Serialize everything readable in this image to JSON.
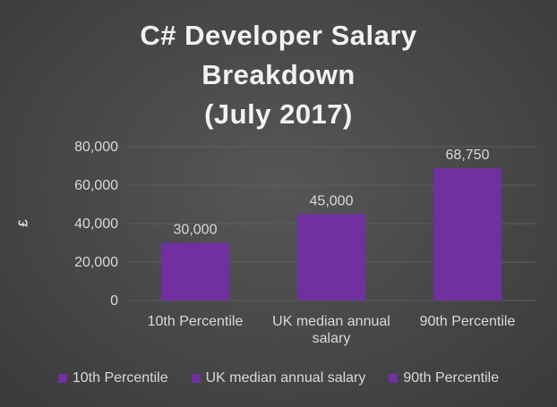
{
  "chart_data": {
    "type": "bar",
    "title": "C# Developer Salary Breakdown (July 2017)",
    "title_lines": [
      "C# Developer Salary",
      "Breakdown",
      "(July 2017)"
    ],
    "ylabel": "£",
    "xlabel": "",
    "categories": [
      "10th Percentile",
      "UK median annual salary",
      "90th Percentile"
    ],
    "category_label_lines": [
      [
        "10th Percentile"
      ],
      [
        "UK median annual",
        "salary"
      ],
      [
        "90th Percentile"
      ]
    ],
    "values": [
      30000,
      45000,
      68750
    ],
    "data_labels": [
      "30,000",
      "45,000",
      "68,750"
    ],
    "ylim": [
      0,
      80000
    ],
    "yticks": [
      0,
      20000,
      40000,
      60000,
      80000
    ],
    "ytick_labels": [
      "0",
      "20,000",
      "40,000",
      "60,000",
      "80,000"
    ],
    "grid": true,
    "legend": {
      "placement": "bottom",
      "entries": [
        "10th Percentile",
        "UK median annual salary",
        "90th Percentile"
      ]
    },
    "colors": {
      "bar": "#7030a0",
      "background": "#474747",
      "grid": "#5e5e5e",
      "text": "#d9d9d9"
    }
  }
}
